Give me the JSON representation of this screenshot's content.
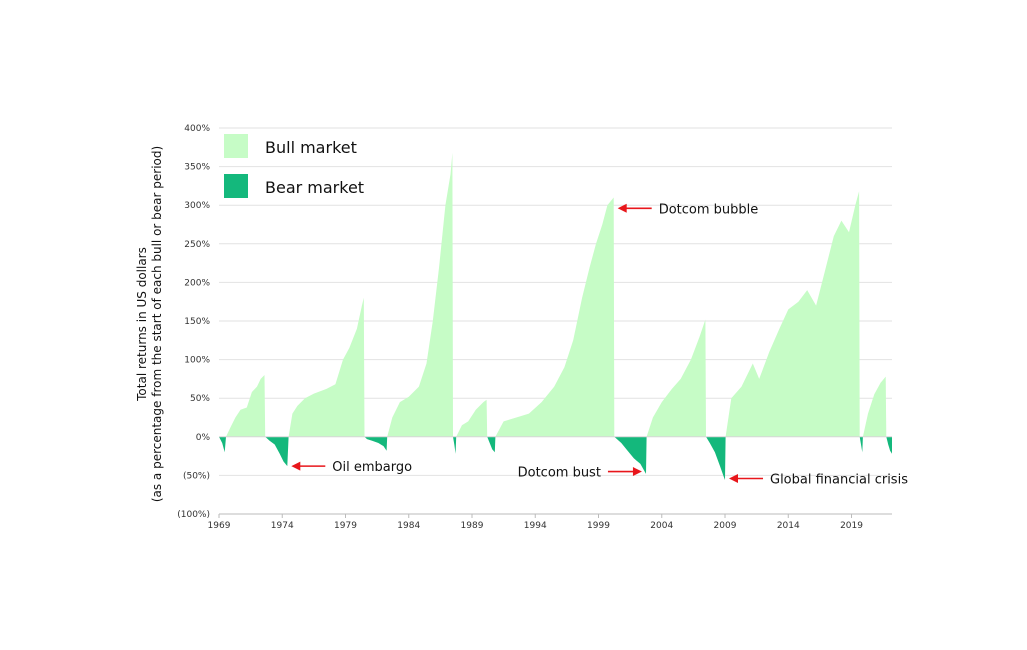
{
  "chart_data": {
    "type": "area",
    "title": "",
    "xlabel": "",
    "ylabel_line1": "Total returns in US dollars",
    "ylabel_line2": "(as a percentage from the start of each bull or bear period)",
    "xlim": [
      1969,
      2022.2
    ],
    "ylim": [
      -100,
      400
    ],
    "x_ticks": [
      1969,
      1974,
      1979,
      1984,
      1989,
      1994,
      1999,
      2004,
      2009,
      2014,
      2019
    ],
    "y_ticks": [
      400,
      350,
      300,
      250,
      200,
      150,
      100,
      50,
      0,
      -50,
      -100
    ],
    "y_tick_labels": [
      "400%",
      "350%",
      "300%",
      "250%",
      "200%",
      "150%",
      "100%",
      "50%",
      "0%",
      "(50%)",
      "(100%)"
    ],
    "grid": true,
    "legend": {
      "placement": "top-left",
      "entries": [
        {
          "label": "Bull market",
          "color": "#c6fcc6"
        },
        {
          "label": "Bear market",
          "color": "#14b87c"
        }
      ]
    },
    "colors": {
      "bull": "#c6fcc6",
      "bear": "#14b87c",
      "arrow": "#e8161b",
      "grid": "#e2e2e2"
    },
    "series": [
      {
        "name": "Bear market",
        "kind": "bear",
        "points": [
          [
            1969.0,
            0
          ],
          [
            1969.25,
            -8
          ],
          [
            1969.45,
            -20
          ],
          [
            1969.55,
            0
          ]
        ]
      },
      {
        "name": "Bull market",
        "kind": "bull",
        "points": [
          [
            1969.55,
            0
          ],
          [
            1969.9,
            12
          ],
          [
            1970.3,
            25
          ],
          [
            1970.7,
            35
          ],
          [
            1971.2,
            38
          ],
          [
            1971.6,
            58
          ],
          [
            1972.0,
            65
          ],
          [
            1972.3,
            75
          ],
          [
            1972.6,
            80
          ],
          [
            1972.65,
            0
          ]
        ]
      },
      {
        "name": "Bear market",
        "kind": "bear",
        "points": [
          [
            1972.65,
            0
          ],
          [
            1973.0,
            -5
          ],
          [
            1973.4,
            -10
          ],
          [
            1973.8,
            -22
          ],
          [
            1974.1,
            -32
          ],
          [
            1974.4,
            -38
          ],
          [
            1974.5,
            0
          ]
        ]
      },
      {
        "name": "Bull market",
        "kind": "bull",
        "points": [
          [
            1974.5,
            0
          ],
          [
            1974.8,
            30
          ],
          [
            1975.2,
            40
          ],
          [
            1975.8,
            50
          ],
          [
            1976.5,
            56
          ],
          [
            1977.5,
            62
          ],
          [
            1978.2,
            68
          ],
          [
            1978.8,
            100
          ],
          [
            1979.3,
            115
          ],
          [
            1979.9,
            140
          ],
          [
            1980.3,
            170
          ],
          [
            1980.45,
            180
          ],
          [
            1980.5,
            0
          ]
        ]
      },
      {
        "name": "Bear market",
        "kind": "bear",
        "points": [
          [
            1980.5,
            0
          ],
          [
            1980.7,
            -3
          ],
          [
            1981.1,
            -5
          ],
          [
            1981.6,
            -8
          ],
          [
            1982.0,
            -12
          ],
          [
            1982.25,
            -18
          ],
          [
            1982.3,
            0
          ]
        ]
      },
      {
        "name": "Bull market",
        "kind": "bull",
        "points": [
          [
            1982.3,
            0
          ],
          [
            1982.7,
            25
          ],
          [
            1983.3,
            45
          ],
          [
            1984.0,
            52
          ],
          [
            1984.8,
            65
          ],
          [
            1985.4,
            95
          ],
          [
            1985.9,
            150
          ],
          [
            1986.4,
            220
          ],
          [
            1986.9,
            300
          ],
          [
            1987.3,
            340
          ],
          [
            1987.45,
            368
          ],
          [
            1987.5,
            0
          ]
        ]
      },
      {
        "name": "Bear market",
        "kind": "bear",
        "points": [
          [
            1987.5,
            0
          ],
          [
            1987.6,
            -10
          ],
          [
            1987.7,
            -22
          ],
          [
            1987.75,
            0
          ]
        ]
      },
      {
        "name": "Bull market",
        "kind": "bull",
        "points": [
          [
            1987.75,
            0
          ],
          [
            1988.2,
            15
          ],
          [
            1988.7,
            20
          ],
          [
            1989.3,
            35
          ],
          [
            1989.9,
            45
          ],
          [
            1990.15,
            48
          ],
          [
            1990.2,
            0
          ]
        ]
      },
      {
        "name": "Bear market",
        "kind": "bear",
        "points": [
          [
            1990.2,
            0
          ],
          [
            1990.4,
            -8
          ],
          [
            1990.6,
            -16
          ],
          [
            1990.8,
            -20
          ],
          [
            1990.85,
            0
          ]
        ]
      },
      {
        "name": "Bull market",
        "kind": "bull",
        "points": [
          [
            1990.85,
            0
          ],
          [
            1991.5,
            20
          ],
          [
            1992.5,
            25
          ],
          [
            1993.5,
            30
          ],
          [
            1994.5,
            45
          ],
          [
            1995.5,
            65
          ],
          [
            1996.3,
            90
          ],
          [
            1997.0,
            125
          ],
          [
            1997.7,
            180
          ],
          [
            1998.3,
            220
          ],
          [
            1998.8,
            250
          ],
          [
            1999.3,
            275
          ],
          [
            1999.7,
            300
          ],
          [
            2000.2,
            310
          ],
          [
            2000.25,
            0
          ]
        ]
      },
      {
        "name": "Bear market",
        "kind": "bear",
        "points": [
          [
            2000.25,
            0
          ],
          [
            2000.8,
            -8
          ],
          [
            2001.3,
            -18
          ],
          [
            2001.8,
            -28
          ],
          [
            2002.3,
            -35
          ],
          [
            2002.75,
            -48
          ],
          [
            2002.8,
            0
          ]
        ]
      },
      {
        "name": "Bull market",
        "kind": "bull",
        "points": [
          [
            2002.8,
            0
          ],
          [
            2003.3,
            25
          ],
          [
            2004.0,
            45
          ],
          [
            2004.8,
            62
          ],
          [
            2005.5,
            75
          ],
          [
            2006.3,
            100
          ],
          [
            2007.0,
            130
          ],
          [
            2007.45,
            152
          ],
          [
            2007.5,
            0
          ]
        ]
      },
      {
        "name": "Bear market",
        "kind": "bear",
        "points": [
          [
            2007.5,
            0
          ],
          [
            2007.8,
            -8
          ],
          [
            2008.2,
            -20
          ],
          [
            2008.6,
            -38
          ],
          [
            2008.9,
            -52
          ],
          [
            2009.0,
            -56
          ],
          [
            2009.05,
            0
          ]
        ]
      },
      {
        "name": "Bull market",
        "kind": "bull",
        "points": [
          [
            2009.05,
            0
          ],
          [
            2009.5,
            50
          ],
          [
            2010.3,
            65
          ],
          [
            2011.2,
            95
          ],
          [
            2011.7,
            75
          ],
          [
            2012.5,
            110
          ],
          [
            2013.3,
            140
          ],
          [
            2014.0,
            165
          ],
          [
            2014.8,
            175
          ],
          [
            2015.5,
            190
          ],
          [
            2016.2,
            170
          ],
          [
            2016.9,
            215
          ],
          [
            2017.6,
            260
          ],
          [
            2018.2,
            280
          ],
          [
            2018.8,
            265
          ],
          [
            2019.3,
            300
          ],
          [
            2019.6,
            318
          ],
          [
            2019.65,
            0
          ]
        ]
      },
      {
        "name": "Bear market",
        "kind": "bear",
        "points": [
          [
            2019.65,
            0
          ],
          [
            2019.75,
            -10
          ],
          [
            2019.85,
            -20
          ],
          [
            2019.9,
            0
          ]
        ]
      },
      {
        "name": "Bull market",
        "kind": "bull",
        "points": [
          [
            2019.9,
            0
          ],
          [
            2020.3,
            30
          ],
          [
            2020.8,
            55
          ],
          [
            2021.3,
            70
          ],
          [
            2021.7,
            78
          ],
          [
            2021.75,
            0
          ]
        ]
      },
      {
        "name": "Bear market",
        "kind": "bear",
        "points": [
          [
            2021.75,
            0
          ],
          [
            2021.9,
            -10
          ],
          [
            2022.05,
            -18
          ],
          [
            2022.2,
            -22
          ],
          [
            2022.2,
            0
          ]
        ]
      }
    ],
    "annotations": [
      {
        "text": "Oil embargo",
        "x": 1974.4,
        "y": -38,
        "side": "right"
      },
      {
        "text": "Dotcom bubble",
        "x": 2000.2,
        "y": 296,
        "side": "right"
      },
      {
        "text": "Dotcom bust",
        "x": 2002.75,
        "y": -45,
        "side": "left"
      },
      {
        "text": "Global financial crisis",
        "x": 2009.0,
        "y": -54,
        "side": "right"
      }
    ]
  }
}
